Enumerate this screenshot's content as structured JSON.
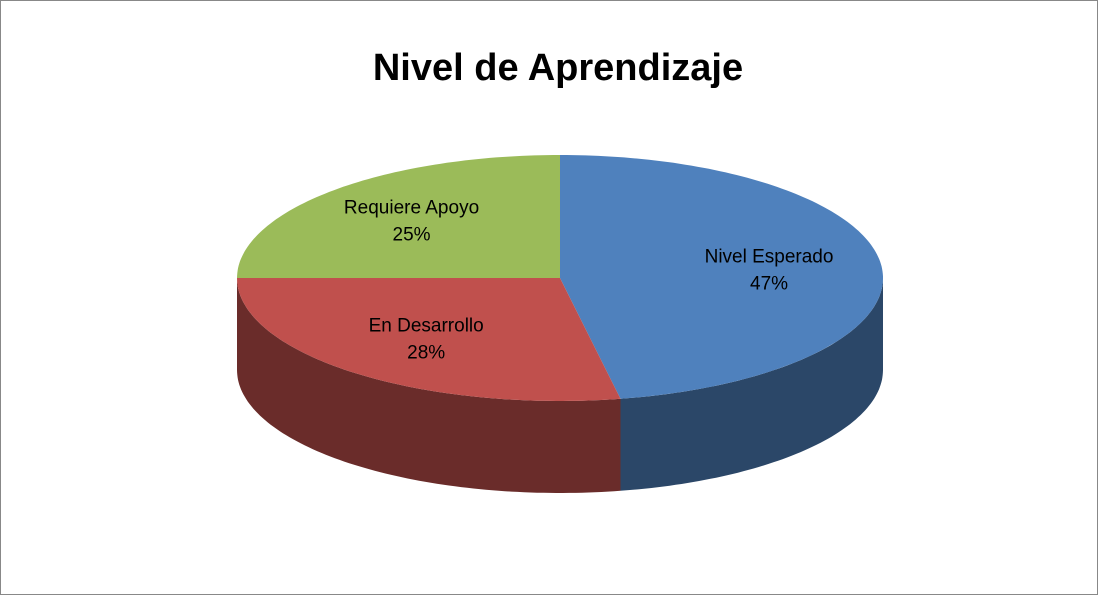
{
  "chart_data": {
    "type": "pie",
    "title": "Nivel de Aprendizaje",
    "categories": [
      "Nivel Esperado",
      "En Desarrollo",
      "Requiere Apoyo"
    ],
    "values": [
      47,
      28,
      25
    ],
    "value_labels": [
      "47%",
      "28%",
      "25%"
    ],
    "colors": [
      "#4f81bd",
      "#c0504d",
      "#9bbb59"
    ]
  }
}
